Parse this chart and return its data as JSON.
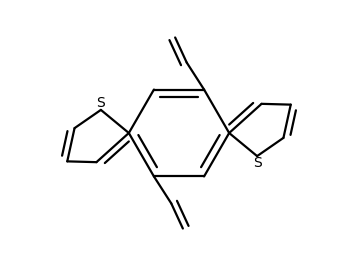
{
  "bg_color": "#ffffff",
  "line_color": "#000000",
  "line_width": 1.6,
  "s_label_fontsize": 10,
  "figsize": [
    3.58,
    2.66
  ],
  "dpi": 100
}
